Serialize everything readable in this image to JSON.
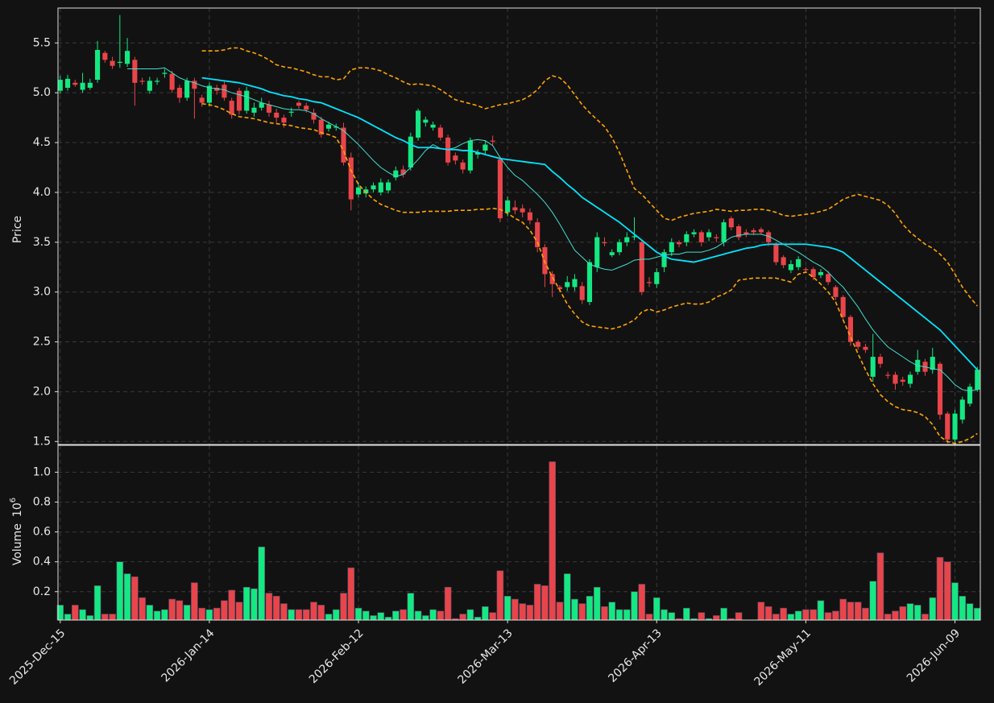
{
  "chart_data": {
    "type": "candlestick",
    "categories": [
      "2025-Dec-15",
      null,
      null,
      null,
      null,
      null,
      null,
      null,
      null,
      null,
      null,
      null,
      null,
      null,
      null,
      null,
      null,
      null,
      null,
      null,
      "2026-Jan-14",
      null,
      null,
      null,
      null,
      null,
      null,
      null,
      null,
      null,
      null,
      null,
      null,
      null,
      null,
      null,
      null,
      null,
      null,
      null,
      "2026-Feb-12",
      null,
      null,
      null,
      null,
      null,
      null,
      null,
      null,
      null,
      null,
      null,
      null,
      null,
      null,
      null,
      null,
      null,
      null,
      null,
      "2026-Mar-13",
      null,
      null,
      null,
      null,
      null,
      null,
      null,
      null,
      null,
      null,
      null,
      null,
      null,
      null,
      null,
      null,
      null,
      null,
      null,
      "2026-Apr-13",
      null,
      null,
      null,
      null,
      null,
      null,
      null,
      null,
      null,
      null,
      null,
      null,
      null,
      null,
      null,
      null,
      null,
      null,
      null,
      "2026-May-11",
      null,
      null,
      null,
      null,
      null,
      null,
      null,
      null,
      null,
      null,
      null,
      null,
      null,
      null,
      null,
      null,
      null,
      null,
      null,
      "2026-Jun-09",
      null,
      null,
      null
    ],
    "xlim": [
      -0.3,
      123.4
    ],
    "open": [
      5.02,
      5.05,
      5.1,
      5.03,
      5.05,
      5.13,
      5.4,
      5.32,
      5.3,
      5.29,
      5.33,
      5.12,
      5.02,
      5.11,
      5.19,
      5.19,
      5.05,
      4.95,
      5.12,
      4.95,
      4.9,
      5.05,
      5.08,
      4.92,
      5.02,
      4.82,
      4.8,
      4.85,
      4.88,
      4.8,
      4.75,
      4.8,
      4.9,
      4.87,
      4.8,
      4.73,
      4.64,
      4.65,
      4.65,
      4.35,
      3.98,
      3.99,
      4.03,
      4.0,
      4.02,
      4.15,
      4.23,
      4.25,
      4.55,
      4.7,
      4.65,
      4.65,
      4.55,
      4.37,
      4.3,
      4.22,
      4.38,
      4.42,
      4.52,
      4.33,
      3.8,
      3.85,
      3.84,
      3.8,
      3.7,
      3.45,
      3.18,
      3.05,
      3.05,
      3.05,
      3.06,
      2.9,
      3.25,
      3.5,
      3.37,
      3.4,
      3.5,
      3.55,
      3.5,
      3.1,
      3.08,
      3.25,
      3.4,
      3.5,
      3.5,
      3.58,
      3.6,
      3.55,
      3.55,
      3.5,
      3.74,
      3.66,
      3.6,
      3.62,
      3.63,
      3.6,
      3.48,
      3.35,
      3.22,
      3.25,
      3.23,
      3.23,
      3.17,
      3.18,
      3.05,
      2.95,
      2.75,
      2.5,
      2.45,
      2.15,
      2.35,
      2.17,
      2.17,
      2.12,
      2.08,
      2.2,
      2.3,
      2.22,
      2.28,
      1.78,
      1.52,
      1.72,
      1.88,
      2.02
    ],
    "high": [
      5.17,
      5.18,
      5.13,
      5.2,
      5.14,
      5.52,
      5.42,
      5.36,
      5.78,
      5.55,
      5.36,
      5.15,
      5.16,
      5.15,
      5.24,
      5.22,
      5.08,
      5.15,
      5.15,
      4.98,
      5.1,
      5.08,
      5.12,
      4.95,
      5.05,
      5.06,
      4.9,
      4.95,
      4.92,
      4.84,
      4.78,
      4.85,
      4.92,
      4.9,
      4.84,
      4.76,
      4.71,
      4.69,
      4.7,
      4.4,
      4.1,
      4.06,
      4.1,
      4.14,
      4.13,
      4.26,
      4.27,
      4.6,
      4.84,
      4.76,
      4.71,
      4.68,
      4.58,
      4.4,
      4.33,
      4.55,
      4.43,
      4.52,
      4.57,
      4.36,
      3.96,
      3.92,
      3.88,
      3.84,
      3.74,
      3.48,
      3.21,
      3.07,
      3.16,
      3.18,
      3.1,
      3.33,
      3.6,
      3.55,
      3.43,
      3.53,
      3.6,
      3.75,
      3.52,
      3.15,
      3.24,
      3.43,
      3.54,
      3.52,
      3.61,
      3.63,
      3.62,
      3.63,
      3.58,
      3.73,
      3.76,
      3.68,
      3.63,
      3.64,
      3.65,
      3.62,
      3.5,
      3.37,
      3.32,
      3.36,
      3.25,
      3.25,
      3.23,
      3.21,
      3.07,
      2.97,
      2.77,
      2.52,
      2.48,
      2.58,
      2.38,
      2.2,
      2.2,
      2.15,
      2.2,
      2.42,
      2.33,
      2.44,
      2.3,
      1.8,
      1.82,
      1.95,
      2.08,
      2.25
    ],
    "low": [
      4.99,
      5.02,
      5.06,
      5.0,
      5.03,
      5.1,
      5.3,
      5.24,
      5.25,
      5.26,
      4.87,
      5.08,
      4.99,
      5.08,
      5.15,
      5.0,
      4.9,
      4.92,
      4.74,
      4.86,
      4.86,
      4.98,
      4.92,
      4.74,
      4.78,
      4.79,
      4.76,
      4.82,
      4.76,
      4.7,
      4.65,
      4.76,
      4.84,
      4.8,
      4.69,
      4.55,
      4.61,
      4.62,
      4.27,
      3.82,
      3.95,
      3.95,
      4.0,
      3.97,
      3.99,
      4.12,
      4.15,
      4.22,
      4.52,
      4.66,
      4.62,
      4.52,
      4.27,
      4.28,
      4.19,
      4.19,
      4.34,
      4.38,
      4.47,
      3.7,
      3.76,
      3.78,
      3.75,
      3.68,
      3.4,
      3.05,
      2.95,
      3.0,
      3.01,
      3.01,
      2.88,
      2.87,
      3.2,
      3.46,
      3.35,
      3.37,
      3.46,
      3.52,
      2.97,
      3.05,
      3.04,
      3.2,
      3.36,
      3.45,
      3.46,
      3.55,
      3.46,
      3.51,
      3.5,
      3.46,
      3.62,
      3.52,
      3.55,
      3.57,
      3.58,
      3.46,
      3.27,
      3.24,
      3.19,
      3.22,
      3.19,
      3.12,
      3.14,
      3.07,
      2.92,
      2.72,
      2.46,
      2.42,
      2.39,
      2.1,
      2.24,
      2.13,
      2.02,
      2.06,
      2.04,
      2.17,
      2.16,
      2.18,
      1.72,
      1.48,
      1.48,
      1.68,
      1.85,
      2.0
    ],
    "close": [
      5.13,
      5.14,
      5.08,
      5.1,
      5.1,
      5.43,
      5.33,
      5.27,
      5.31,
      5.42,
      5.1,
      5.11,
      5.12,
      5.12,
      5.2,
      5.03,
      4.95,
      5.12,
      5.04,
      4.9,
      5.07,
      5.02,
      4.95,
      4.78,
      4.82,
      5.02,
      4.85,
      4.9,
      4.8,
      4.75,
      4.7,
      4.81,
      4.87,
      4.83,
      4.73,
      4.58,
      4.68,
      4.66,
      4.3,
      3.93,
      4.05,
      4.03,
      4.07,
      4.1,
      4.1,
      4.22,
      4.18,
      4.56,
      4.82,
      4.73,
      4.68,
      4.55,
      4.3,
      4.32,
      4.23,
      4.52,
      4.4,
      4.48,
      4.51,
      3.74,
      3.92,
      3.82,
      3.8,
      3.72,
      3.45,
      3.18,
      3.08,
      3.03,
      3.1,
      3.13,
      2.92,
      3.3,
      3.55,
      3.49,
      3.4,
      3.5,
      3.55,
      3.56,
      3.0,
      3.09,
      3.2,
      3.4,
      3.5,
      3.48,
      3.58,
      3.6,
      3.5,
      3.6,
      3.54,
      3.7,
      3.65,
      3.55,
      3.58,
      3.6,
      3.6,
      3.5,
      3.3,
      3.27,
      3.28,
      3.33,
      3.22,
      3.15,
      3.2,
      3.1,
      2.95,
      2.75,
      2.5,
      2.45,
      2.42,
      2.35,
      2.28,
      2.16,
      2.08,
      2.1,
      2.17,
      2.32,
      2.2,
      2.35,
      1.77,
      1.52,
      1.78,
      1.92,
      2.05,
      2.22
    ],
    "volume": [
      0.11,
      0.05,
      0.11,
      0.08,
      0.04,
      0.24,
      0.05,
      0.05,
      0.4,
      0.32,
      0.3,
      0.16,
      0.11,
      0.07,
      0.08,
      0.15,
      0.14,
      0.11,
      0.26,
      0.09,
      0.08,
      0.09,
      0.14,
      0.21,
      0.13,
      0.23,
      0.22,
      0.5,
      0.19,
      0.17,
      0.12,
      0.08,
      0.08,
      0.08,
      0.13,
      0.11,
      0.05,
      0.08,
      0.19,
      0.36,
      0.09,
      0.07,
      0.04,
      0.06,
      0.03,
      0.07,
      0.08,
      0.19,
      0.07,
      0.04,
      0.08,
      0.07,
      0.23,
      0.02,
      0.05,
      0.08,
      0.03,
      0.1,
      0.06,
      0.34,
      0.17,
      0.15,
      0.12,
      0.11,
      0.25,
      0.24,
      1.07,
      0.13,
      0.32,
      0.15,
      0.12,
      0.17,
      0.23,
      0.1,
      0.13,
      0.08,
      0.08,
      0.2,
      0.25,
      0.05,
      0.16,
      0.08,
      0.06,
      0.02,
      0.09,
      0.02,
      0.06,
      0.02,
      0.04,
      0.09,
      0.02,
      0.06,
      0.01,
      0.01,
      0.13,
      0.1,
      0.05,
      0.09,
      0.05,
      0.07,
      0.08,
      0.08,
      0.14,
      0.06,
      0.07,
      0.15,
      0.13,
      0.13,
      0.09,
      0.27,
      0.46,
      0.05,
      0.07,
      0.1,
      0.12,
      0.11,
      0.05,
      0.16,
      0.43,
      0.4,
      0.26,
      0.17,
      0.12,
      0.09
    ],
    "up_color": "#14e882",
    "down_color": "#e8454a",
    "overlays": [
      {
        "color": "#ffa500",
        "width": 1.6,
        "dashed": true,
        "values": [
          null,
          null,
          null,
          null,
          null,
          null,
          null,
          null,
          null,
          null,
          null,
          null,
          null,
          null,
          null,
          null,
          null,
          null,
          null,
          5.42,
          5.42,
          5.42,
          5.43,
          5.45,
          5.45,
          5.42,
          5.4,
          5.37,
          5.33,
          5.28,
          5.26,
          5.25,
          5.23,
          5.21,
          5.18,
          5.16,
          5.16,
          5.13,
          5.14,
          5.23,
          5.25,
          5.25,
          5.24,
          5.22,
          5.18,
          5.15,
          5.11,
          5.08,
          5.09,
          5.08,
          5.07,
          5.03,
          4.98,
          4.93,
          4.91,
          4.89,
          4.87,
          4.84,
          4.86,
          4.88,
          4.89,
          4.91,
          4.93,
          4.97,
          5.03,
          5.12,
          5.17,
          5.15,
          5.08,
          4.98,
          4.88,
          4.8,
          4.73,
          4.66,
          4.55,
          4.4,
          4.22,
          4.04,
          3.98,
          3.9,
          3.82,
          3.74,
          3.72,
          3.75,
          3.77,
          3.79,
          3.8,
          3.81,
          3.83,
          3.82,
          3.81,
          3.82,
          3.82,
          3.83,
          3.83,
          3.82,
          3.8,
          3.77,
          3.76,
          3.77,
          3.78,
          3.79,
          3.81,
          3.83,
          3.88,
          3.93,
          3.96,
          3.98,
          3.96,
          3.94,
          3.92,
          3.87,
          3.79,
          3.68,
          3.6,
          3.54,
          3.48,
          3.44,
          3.38,
          3.3,
          3.18,
          3.05,
          2.95,
          2.86
        ]
      },
      {
        "color": "#ffa500",
        "width": 1.6,
        "dashed": true,
        "values": [
          null,
          null,
          null,
          null,
          null,
          null,
          null,
          null,
          null,
          null,
          null,
          null,
          null,
          null,
          null,
          null,
          null,
          null,
          null,
          4.89,
          4.88,
          4.86,
          4.83,
          4.79,
          4.76,
          4.75,
          4.74,
          4.72,
          4.7,
          4.69,
          4.68,
          4.67,
          4.65,
          4.64,
          4.63,
          4.6,
          4.58,
          4.55,
          4.42,
          4.22,
          4.08,
          4.0,
          3.93,
          3.88,
          3.85,
          3.82,
          3.8,
          3.8,
          3.8,
          3.81,
          3.81,
          3.81,
          3.81,
          3.82,
          3.82,
          3.82,
          3.83,
          3.83,
          3.84,
          3.83,
          3.79,
          3.74,
          3.7,
          3.62,
          3.5,
          3.3,
          3.15,
          3.02,
          2.88,
          2.78,
          2.7,
          2.66,
          2.65,
          2.64,
          2.63,
          2.65,
          2.68,
          2.72,
          2.8,
          2.83,
          2.8,
          2.82,
          2.85,
          2.87,
          2.89,
          2.88,
          2.88,
          2.9,
          2.95,
          2.98,
          3.02,
          3.12,
          3.13,
          3.14,
          3.14,
          3.14,
          3.14,
          3.12,
          3.1,
          3.18,
          3.2,
          3.15,
          3.08,
          3.0,
          2.9,
          2.72,
          2.55,
          2.38,
          2.22,
          2.08,
          1.97,
          1.9,
          1.85,
          1.82,
          1.81,
          1.79,
          1.75,
          1.67,
          1.55,
          1.5,
          1.48,
          1.5,
          1.53,
          1.58
        ]
      },
      {
        "color": "#40e0d0",
        "width": 1,
        "dashed": false,
        "values": [
          null,
          null,
          null,
          null,
          null,
          null,
          null,
          null,
          null,
          5.24,
          5.24,
          5.24,
          5.24,
          5.24,
          5.25,
          5.2,
          5.15,
          5.12,
          5.1,
          5.07,
          5.05,
          5.04,
          5.03,
          5.0,
          4.98,
          4.96,
          4.93,
          4.9,
          4.88,
          4.86,
          4.84,
          4.83,
          4.83,
          4.82,
          4.79,
          4.74,
          4.7,
          4.66,
          4.62,
          4.55,
          4.48,
          4.4,
          4.32,
          4.25,
          4.2,
          4.16,
          4.18,
          4.25,
          4.33,
          4.42,
          4.48,
          4.44,
          4.43,
          4.45,
          4.49,
          4.52,
          4.53,
          4.52,
          4.47,
          4.35,
          4.25,
          4.17,
          4.12,
          4.05,
          3.98,
          3.9,
          3.8,
          3.68,
          3.55,
          3.42,
          3.35,
          3.28,
          3.25,
          3.23,
          3.22,
          3.25,
          3.28,
          3.32,
          3.33,
          3.33,
          3.35,
          3.37,
          3.38,
          3.38,
          3.4,
          3.4,
          3.4,
          3.42,
          3.45,
          3.5,
          3.55,
          3.57,
          3.58,
          3.58,
          3.58,
          3.56,
          3.52,
          3.48,
          3.44,
          3.4,
          3.35,
          3.3,
          3.26,
          3.2,
          3.12,
          3.05,
          2.95,
          2.85,
          2.73,
          2.62,
          2.53,
          2.45,
          2.4,
          2.35,
          2.3,
          2.26,
          2.25,
          2.23,
          2.22,
          2.15,
          2.07,
          2.02,
          2.01,
          2.02
        ]
      },
      {
        "color": "#00e5ff",
        "width": 1.8,
        "dashed": false,
        "values": [
          null,
          null,
          null,
          null,
          null,
          null,
          null,
          null,
          null,
          null,
          null,
          null,
          null,
          null,
          null,
          null,
          null,
          null,
          null,
          5.15,
          5.14,
          5.13,
          5.12,
          5.11,
          5.1,
          5.08,
          5.06,
          5.04,
          5.01,
          4.99,
          4.97,
          4.96,
          4.94,
          4.93,
          4.91,
          4.9,
          4.87,
          4.84,
          4.81,
          4.78,
          4.75,
          4.71,
          4.67,
          4.63,
          4.59,
          4.55,
          4.52,
          4.48,
          4.45,
          4.45,
          4.45,
          4.44,
          4.43,
          4.43,
          4.42,
          4.42,
          4.4,
          4.38,
          4.36,
          4.34,
          4.33,
          4.32,
          4.31,
          4.3,
          4.29,
          4.28,
          4.21,
          4.15,
          4.08,
          4.02,
          3.95,
          3.9,
          3.85,
          3.8,
          3.75,
          3.7,
          3.64,
          3.58,
          3.52,
          3.46,
          3.4,
          3.36,
          3.33,
          3.32,
          3.31,
          3.3,
          3.32,
          3.34,
          3.36,
          3.38,
          3.4,
          3.42,
          3.44,
          3.45,
          3.47,
          3.48,
          3.48,
          3.48,
          3.48,
          3.48,
          3.48,
          3.47,
          3.46,
          3.45,
          3.43,
          3.4,
          3.34,
          3.28,
          3.22,
          3.16,
          3.1,
          3.04,
          2.98,
          2.92,
          2.86,
          2.8,
          2.74,
          2.68,
          2.62,
          2.54,
          2.46,
          2.38,
          2.3,
          2.22
        ]
      }
    ],
    "ylabel": "Price",
    "ylim": [
      1.47,
      5.85
    ],
    "yticks": [
      1.5,
      {
        "value": 2,
        "label": "2.0"
      },
      2.5,
      {
        "value": 3,
        "label": "3.0"
      },
      3.5,
      {
        "value": 4,
        "label": "4.0"
      },
      4.5,
      {
        "value": 5,
        "label": "5.0"
      },
      5.5
    ],
    "volume_ylabel": "Volume",
    "volume_scale": {
      "base": "10",
      "exponent": "6"
    },
    "volume_ylim": [
      0.01,
      1.18
    ],
    "volume_yticks": [
      0.2,
      0.4,
      0.6,
      0.8,
      {
        "value": 1,
        "label": "1.0"
      }
    ],
    "grid": true
  }
}
